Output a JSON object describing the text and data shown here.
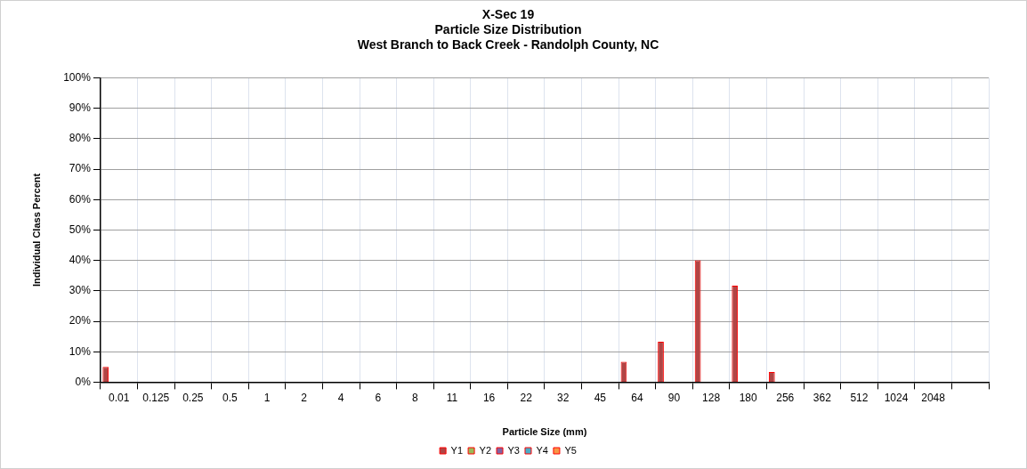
{
  "chart_data": {
    "type": "bar",
    "title": "X-Sec 19\nParticle Size Distribution\nWest Branch to Back Creek - Randolph County, NC",
    "xlabel": "Particle Size (mm)",
    "ylabel": "Individual Class Percent",
    "categories": [
      "0.01",
      "0.125",
      "0.25",
      "0.5",
      "1",
      "2",
      "4",
      "6",
      "8",
      "11",
      "16",
      "22",
      "32",
      "45",
      "64",
      "90",
      "128",
      "180",
      "256",
      "362",
      "512",
      "1024",
      "2048",
      null
    ],
    "series": [
      {
        "name": "Y1",
        "color": "#b04545",
        "values": [
          5,
          0,
          0,
          0,
          0,
          0,
          0,
          0,
          0,
          0,
          0,
          0,
          0,
          0,
          6.7,
          13.3,
          40,
          31.7,
          3.3,
          0,
          0,
          0,
          0,
          null
        ]
      },
      {
        "name": "Y2",
        "color": "#9bbb59",
        "values": [
          null,
          null,
          null,
          null,
          null,
          null,
          null,
          null,
          null,
          null,
          null,
          null,
          null,
          null,
          null,
          null,
          null,
          null,
          null,
          null,
          null,
          null,
          null,
          null
        ]
      },
      {
        "name": "Y3",
        "color": "#8064a2",
        "values": [
          null,
          null,
          null,
          null,
          null,
          null,
          null,
          null,
          null,
          null,
          null,
          null,
          null,
          null,
          null,
          null,
          null,
          null,
          null,
          null,
          null,
          null,
          null,
          null
        ]
      },
      {
        "name": "Y4",
        "color": "#4bacc6",
        "values": [
          null,
          null,
          null,
          null,
          null,
          null,
          null,
          null,
          null,
          null,
          null,
          null,
          null,
          null,
          null,
          null,
          null,
          null,
          null,
          null,
          null,
          null,
          null,
          null
        ]
      },
      {
        "name": "Y5",
        "color": "#f79646",
        "values": [
          null,
          null,
          null,
          null,
          null,
          null,
          null,
          null,
          null,
          null,
          null,
          null,
          null,
          null,
          null,
          null,
          null,
          null,
          null,
          null,
          null,
          null,
          null,
          null
        ]
      }
    ],
    "ylim": [
      0,
      100
    ],
    "yticks": [
      {
        "value": 0,
        "label": "0%"
      },
      {
        "value": 10,
        "label": "10%"
      },
      {
        "value": 20,
        "label": "20%"
      },
      {
        "value": 30,
        "label": "30%"
      },
      {
        "value": 40,
        "label": "40%"
      },
      {
        "value": 50,
        "label": "50%"
      },
      {
        "value": 60,
        "label": "60%"
      },
      {
        "value": 70,
        "label": "70%"
      },
      {
        "value": 80,
        "label": "80%"
      },
      {
        "value": 90,
        "label": "90%"
      },
      {
        "value": 100,
        "label": "100%"
      }
    ],
    "grid": true,
    "legend": "bottom"
  }
}
